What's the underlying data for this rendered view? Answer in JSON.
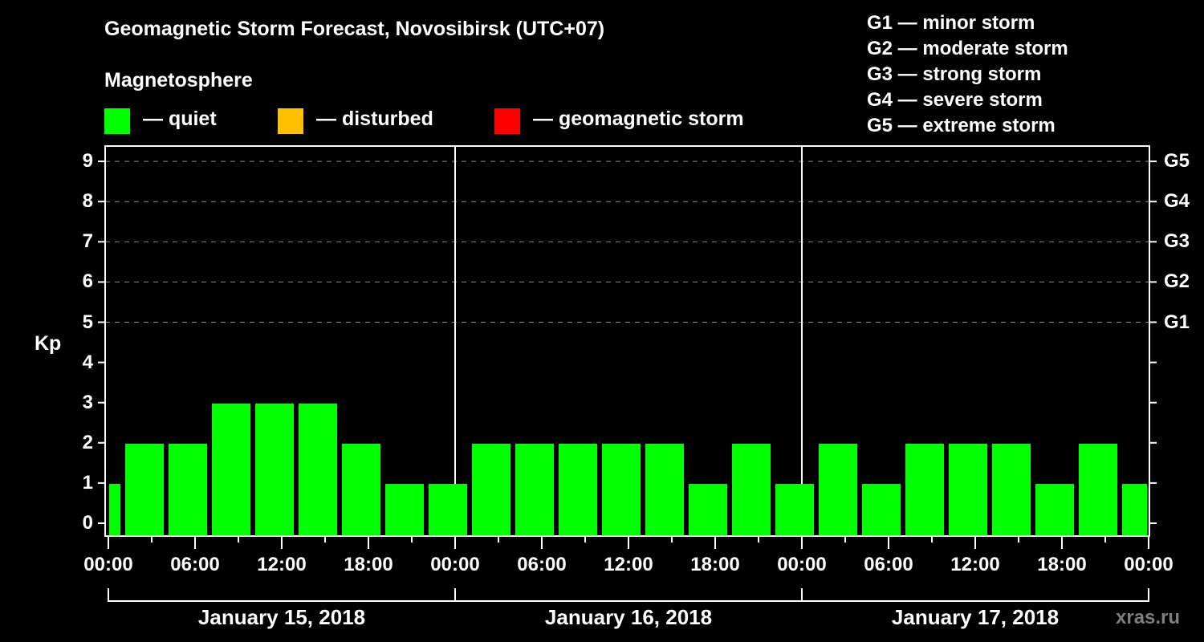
{
  "header": {
    "title": "Geomagnetic Storm Forecast, Novosibirsk (UTC+07)",
    "subtitle": "Magnetosphere"
  },
  "legend": {
    "items": [
      {
        "label": "— quiet",
        "color": "#00ff00"
      },
      {
        "label": "— disturbed",
        "color": "#ffc000"
      },
      {
        "label": "— geomagnetic storm",
        "color": "#ff0000"
      }
    ]
  },
  "storm_scale": [
    "G1 — minor storm",
    "G2 — moderate storm",
    "G3 — strong storm",
    "G4 — severe storm",
    "G5 — extreme storm"
  ],
  "axes": {
    "ylabel": "Kp",
    "yticks": [
      "0",
      "1",
      "2",
      "3",
      "4",
      "5",
      "6",
      "7",
      "8",
      "9"
    ],
    "right_ticks": [
      {
        "kp": 5,
        "label": "G1"
      },
      {
        "kp": 6,
        "label": "G2"
      },
      {
        "kp": 7,
        "label": "G3"
      },
      {
        "kp": 8,
        "label": "G4"
      },
      {
        "kp": 9,
        "label": "G5"
      }
    ],
    "xticks": [
      "00:00",
      "06:00",
      "12:00",
      "18:00",
      "00:00",
      "06:00",
      "12:00",
      "18:00",
      "00:00",
      "06:00",
      "12:00",
      "18:00",
      "00:00"
    ],
    "dates": [
      "January 15, 2018",
      "January 16, 2018",
      "January 17, 2018"
    ]
  },
  "watermark": "xras.ru",
  "chart_data": {
    "type": "bar",
    "title": "Geomagnetic Storm Forecast, Novosibirsk (UTC+07)",
    "subtitle": "Magnetosphere",
    "xlabel": "",
    "ylabel": "Kp",
    "ylim": [
      0,
      9
    ],
    "grid": "dashed horizontal at Kp 5-9",
    "legend_position": "top",
    "legend": [
      "quiet",
      "disturbed",
      "geomagnetic storm"
    ],
    "colors": {
      "quiet": "#00ff00",
      "disturbed": "#ffc000",
      "geomagnetic storm": "#ff0000"
    },
    "interval_hours": 3,
    "note": "Bars offset within 3-hour slots; first and last bars partially clipped at chart edges",
    "categories": [
      "Jan 15 ~00:00",
      "Jan 15 ~03:00",
      "Jan 15 ~06:00",
      "Jan 15 ~09:00",
      "Jan 15 ~12:00",
      "Jan 15 ~15:00",
      "Jan 15 ~18:00",
      "Jan 15 ~21:00",
      "Jan 16 ~00:00",
      "Jan 16 ~03:00",
      "Jan 16 ~06:00",
      "Jan 16 ~09:00",
      "Jan 16 ~12:00",
      "Jan 16 ~15:00",
      "Jan 16 ~18:00",
      "Jan 16 ~21:00",
      "Jan 17 ~00:00",
      "Jan 17 ~03:00",
      "Jan 17 ~06:00",
      "Jan 17 ~09:00",
      "Jan 17 ~12:00",
      "Jan 17 ~15:00",
      "Jan 17 ~18:00",
      "Jan 17 ~21:00",
      "Jan 18 ~00:00"
    ],
    "values": [
      1,
      2,
      2,
      3,
      3,
      3,
      2,
      1,
      1,
      2,
      2,
      2,
      2,
      2,
      1,
      2,
      1,
      2,
      1,
      2,
      2,
      2,
      1,
      2,
      1
    ],
    "bar_status": "quiet",
    "right_axis": {
      "5": "G1",
      "6": "G2",
      "7": "G3",
      "8": "G4",
      "9": "G5"
    }
  }
}
